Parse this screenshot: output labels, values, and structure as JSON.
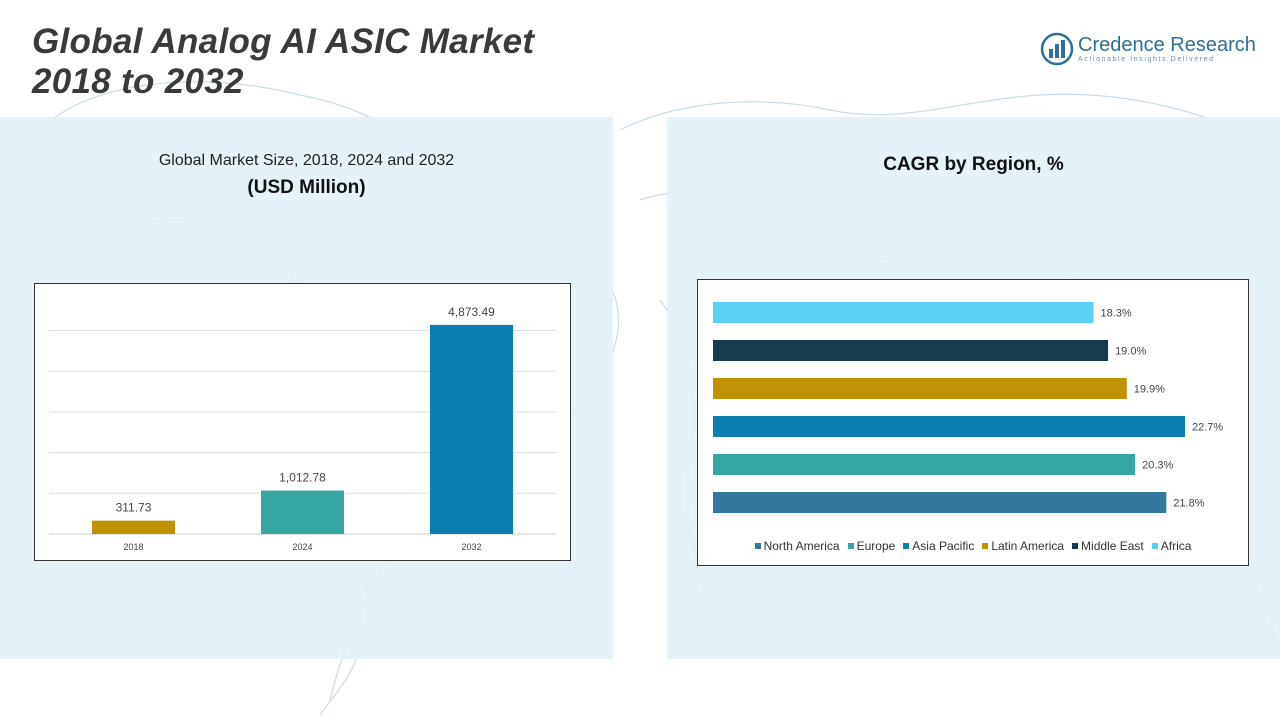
{
  "header": {
    "title_line1": "Global Analog AI ASIC Market",
    "title_line2": "2018 to 2032"
  },
  "logo": {
    "name": "Credence Research",
    "tagline": "Actionable Insights Delivered",
    "icon": "bar-chart-logo-icon",
    "color": "#2d6f9a"
  },
  "left_panel": {
    "subtitle": "Global Market Size, 2018, 2024 and 2032",
    "unit": "(USD Million)"
  },
  "right_panel": {
    "title": "CAGR by Region, %"
  },
  "chart_data": [
    {
      "type": "bar",
      "orientation": "vertical",
      "categories": [
        "2018",
        "2024",
        "2032"
      ],
      "values": [
        311.73,
        1012.78,
        4873.49
      ],
      "value_labels": [
        "311.73",
        "1,012.78",
        "4,873.49"
      ],
      "colors": [
        "#c09203",
        "#36a6a3",
        "#0a7eb0"
      ],
      "ylim": [
        0,
        5500
      ],
      "grid": true,
      "legend": "none"
    },
    {
      "type": "bar",
      "orientation": "horizontal",
      "categories": [
        "Africa",
        "Middle East",
        "Latin America",
        "Asia Pacific",
        "Europe",
        "North America"
      ],
      "values": [
        18.3,
        19.0,
        19.9,
        22.7,
        20.3,
        21.8
      ],
      "value_labels": [
        "18.3%",
        "19.0%",
        "19.9%",
        "22.7%",
        "20.3%",
        "21.8%"
      ],
      "colors": [
        "#5ccff5",
        "#173c4e",
        "#c09203",
        "#0a7eb0",
        "#36a6a3",
        "#3478a0"
      ],
      "xlim": [
        0,
        24
      ],
      "grid": false,
      "legend": "bottom",
      "legend_order": [
        {
          "name": "North America",
          "color": "#3478a0"
        },
        {
          "name": "Europe",
          "color": "#36a6a3"
        },
        {
          "name": "Asia Pacific",
          "color": "#0a7eb0"
        },
        {
          "name": "Latin America",
          "color": "#c09203"
        },
        {
          "name": "Middle East",
          "color": "#173c4e"
        },
        {
          "name": "Africa",
          "color": "#5ccff5"
        }
      ]
    }
  ]
}
